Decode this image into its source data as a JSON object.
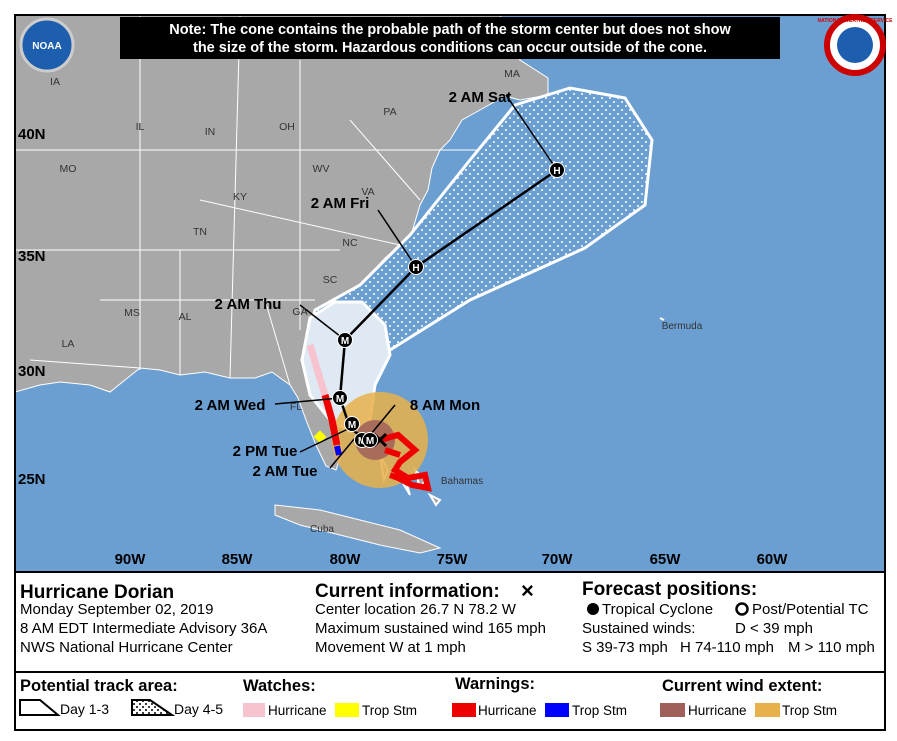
{
  "note": [
    "Note: The cone contains the probable path of the storm center but does not show",
    "the size of the storm. Hazardous conditions can occur outside of the cone."
  ],
  "logos": {
    "left": "NOAA",
    "right": "NATIONAL WEATHER SERVICE"
  },
  "map": {
    "lat_labels": [
      "40N",
      "35N",
      "30N",
      "25N"
    ],
    "lon_labels": [
      "90W",
      "85W",
      "80W",
      "75W",
      "70W",
      "65W",
      "60W"
    ],
    "places": [
      "IA",
      "IL",
      "IN",
      "OH",
      "PA",
      "MA",
      "MO",
      "KY",
      "WV",
      "VA",
      "TN",
      "NC",
      "SC",
      "GA",
      "AL",
      "MS",
      "LA",
      "FL",
      "Bermuda",
      "Bahamas",
      "Cuba"
    ],
    "forecast_times": [
      "2 AM Sat",
      "2 AM Fri",
      "2 AM Thu",
      "2 AM Wed",
      "8 AM Mon",
      "2 PM Tue",
      "2 AM Tue"
    ],
    "track_points": [
      "H",
      "H",
      "M",
      "M",
      "M",
      "M",
      "M"
    ]
  },
  "info": {
    "title": "Hurricane Dorian",
    "date": "Monday September 02, 2019",
    "advisory": "8 AM EDT Intermediate Advisory 36A",
    "center": "NWS National Hurricane Center",
    "current_heading": "Current information:",
    "current_symbol": "×",
    "current_lines": [
      "Center location 26.7 N 78.2 W",
      "Maximum sustained wind 165 mph",
      "Movement W at 1 mph"
    ],
    "forecast_heading": "Forecast positions:",
    "tropical_cyclone": "Tropical Cyclone",
    "post_tc": "Post/Potential TC",
    "winds_heading": "Sustained winds:",
    "winds": [
      "D < 39 mph",
      "S 39-73 mph",
      "H 74-110 mph",
      "M > 110 mph"
    ]
  },
  "legend": {
    "track_heading": "Potential track area:",
    "day13": "Day 1-3",
    "day45": "Day 4-5",
    "watches_heading": "Watches:",
    "watches": [
      "Hurricane",
      "Trop Stm"
    ],
    "warnings_heading": "Warnings:",
    "warnings": [
      "Hurricane",
      "Trop Stm"
    ],
    "wind_heading": "Current wind extent:",
    "wind": [
      "Hurricane",
      "Trop Stm"
    ]
  }
}
